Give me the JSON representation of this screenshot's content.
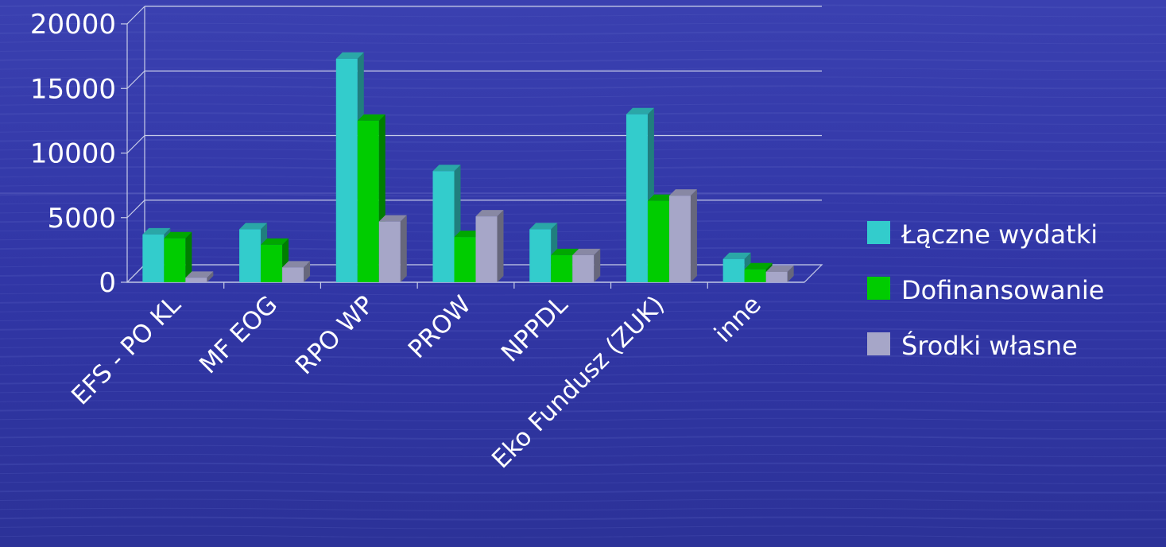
{
  "colors": {
    "background": "#3238a8",
    "grid": "#c8cde8",
    "series": [
      "#33cccc",
      "#00cc00",
      "#a6a6c8"
    ]
  },
  "chart_data": {
    "type": "bar",
    "style": "3d-clustered",
    "title": "",
    "xlabel": "",
    "ylabel": "",
    "ylim": [
      0,
      20000
    ],
    "yticks": [
      "0",
      "5000",
      "10000",
      "15000",
      "20000"
    ],
    "categories": [
      "EFS - PO KL",
      "MF EOG",
      "RPO WP",
      "PROW",
      "NPPDL",
      "Eko Fundusz (ZUK)",
      "inne"
    ],
    "series": [
      {
        "name": "Łączne wydatki",
        "values": [
          3700,
          4100,
          17300,
          8600,
          4100,
          13000,
          1800
        ]
      },
      {
        "name": "Dofinansowanie",
        "values": [
          3400,
          2900,
          12500,
          3500,
          2100,
          6300,
          1000
        ]
      },
      {
        "name": "Środki własne",
        "values": [
          350,
          1150,
          4700,
          5100,
          2100,
          6700,
          800
        ]
      }
    ],
    "legend": "right",
    "grid": true
  }
}
